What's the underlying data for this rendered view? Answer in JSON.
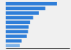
{
  "chart_data": {
    "type": "bar",
    "orientation": "horizontal",
    "categories": [
      null,
      null,
      null,
      null,
      null,
      null,
      null,
      null,
      null,
      null
    ],
    "values": [
      80,
      62,
      52,
      43,
      38,
      36,
      35,
      33,
      25,
      22
    ],
    "colors": [
      "#2f7ed8",
      "#2f7ed8",
      "#2f7ed8",
      "#2f7ed8",
      "#2f7ed8",
      "#2f7ed8",
      "#2f7ed8",
      "#2f7ed8",
      "#2f7ed8",
      "#7fb3e8"
    ],
    "xlim": [
      0,
      100
    ],
    "tick_labels": false,
    "grid": false
  }
}
